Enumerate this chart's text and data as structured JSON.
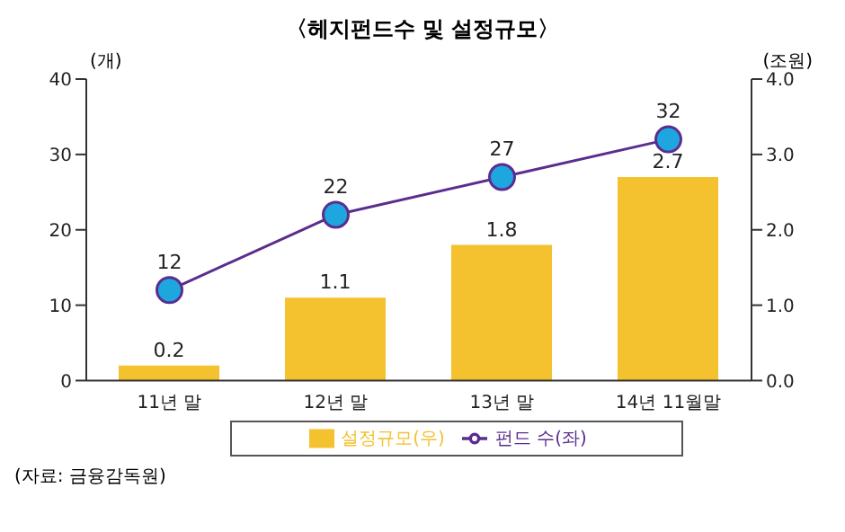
{
  "chart_data": {
    "type": "bar",
    "title": "〈헤지펀드수 및 설정규모〉",
    "categories": [
      "11년 말",
      "12년 말",
      "13년 말",
      "14년 11월말"
    ],
    "series": [
      {
        "name": "펀드 수(좌)",
        "type": "line",
        "color": "#5b2d8e",
        "values": [
          12,
          22,
          27,
          32
        ]
      },
      {
        "name": "설정규모(우)",
        "axis": "y2",
        "color": "#f4c12f",
        "values": [
          0.2,
          1.1,
          1.8,
          2.7
        ]
      }
    ],
    "ylabel": "(개)",
    "y2label": "(조원)",
    "ylim": [
      0,
      40
    ],
    "yticks": [
      0,
      10,
      20,
      30,
      40
    ],
    "y2lim": [
      0,
      4
    ],
    "y2ticks": [
      {
        "value": 0,
        "label": "0.0"
      },
      {
        "value": 1,
        "label": "1.0"
      },
      {
        "value": 2,
        "label": "2.0"
      },
      {
        "value": 3,
        "label": "3.0"
      },
      {
        "value": 4,
        "label": "4.0"
      }
    ],
    "marker": "circle",
    "data_labels": true,
    "grid": false,
    "legend": "bottom",
    "annotations": [
      "(자료: 금융감독원)"
    ]
  }
}
